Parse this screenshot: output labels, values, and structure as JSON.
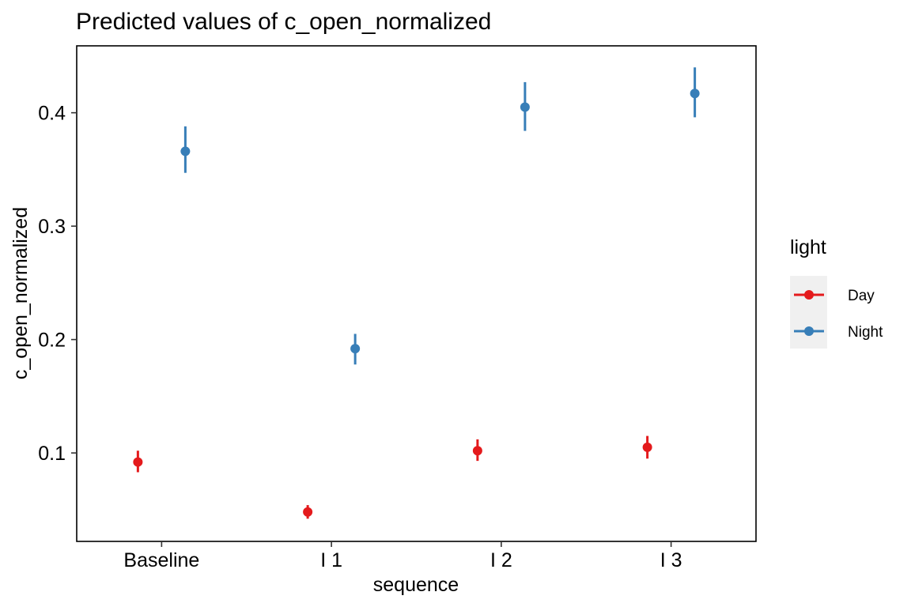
{
  "chart_data": {
    "type": "scatter",
    "title": "Predicted values of c_open_normalized",
    "xlabel": "sequence",
    "ylabel": "c_open_normalized",
    "categories": [
      "Baseline",
      "I 1",
      "I 2",
      "I 3"
    ],
    "ylim": [
      0.022,
      0.459
    ],
    "yticks": [
      0.1,
      0.2,
      0.3,
      0.4
    ],
    "ytick_labels": [
      "0.1",
      "0.2",
      "0.3",
      "0.4"
    ],
    "grid": false,
    "legend": {
      "title": "light",
      "position": "right"
    },
    "series": [
      {
        "name": "Day",
        "color": "#E41A1C",
        "values": [
          0.092,
          0.048,
          0.102,
          0.105
        ],
        "ci_low": [
          0.083,
          0.042,
          0.093,
          0.095
        ],
        "ci_high": [
          0.102,
          0.054,
          0.112,
          0.115
        ]
      },
      {
        "name": "Night",
        "color": "#377EB8",
        "values": [
          0.366,
          0.192,
          0.405,
          0.417
        ],
        "ci_low": [
          0.347,
          0.178,
          0.384,
          0.396
        ],
        "ci_high": [
          0.388,
          0.205,
          0.427,
          0.44
        ]
      }
    ]
  }
}
